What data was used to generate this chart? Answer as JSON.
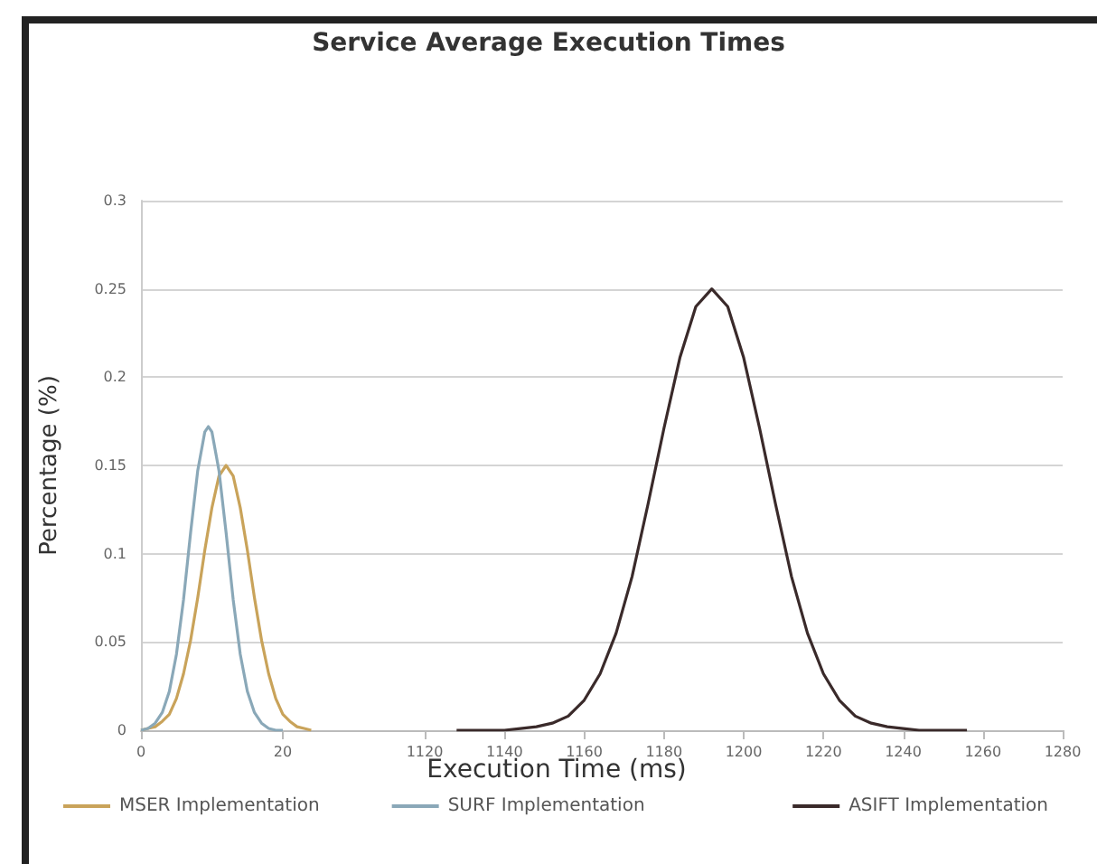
{
  "chart_data": [
    {
      "type": "line",
      "ylabel": "Percentage (%)",
      "xlim": [
        0,
        40
      ],
      "xticks": [
        0,
        20
      ],
      "ylim": [
        0,
        0.3
      ],
      "yticks": [
        0,
        0.05,
        0.1,
        0.15,
        0.2,
        0.25,
        0.3
      ],
      "grid": "y",
      "legend": "bottom",
      "marker": "none",
      "line_style": "solid",
      "series": [
        {
          "name": "MSER Implementation",
          "color": "#c9a35a",
          "x": [
            0,
            1,
            2,
            3,
            4,
            5,
            6,
            7,
            8,
            9,
            10,
            11,
            12,
            13,
            14,
            15,
            16,
            17,
            18,
            19,
            20,
            21,
            22,
            23,
            24
          ],
          "values": [
            0,
            0.001,
            0.002,
            0.005,
            0.009,
            0.018,
            0.032,
            0.051,
            0.075,
            0.102,
            0.126,
            0.144,
            0.15,
            0.144,
            0.126,
            0.102,
            0.075,
            0.051,
            0.032,
            0.018,
            0.009,
            0.005,
            0.002,
            0.001,
            0
          ]
        },
        {
          "name": "SURF Implementation",
          "color": "#8aa8b8",
          "x": [
            0,
            1,
            2,
            3,
            4,
            5,
            6,
            7,
            8,
            9,
            9.5,
            10,
            11,
            12,
            13,
            14,
            15,
            16,
            17,
            18,
            19,
            20
          ],
          "values": [
            0,
            0.001,
            0.004,
            0.01,
            0.022,
            0.043,
            0.074,
            0.112,
            0.147,
            0.169,
            0.172,
            0.169,
            0.147,
            0.112,
            0.074,
            0.043,
            0.022,
            0.01,
            0.004,
            0.001,
            0,
            0
          ]
        }
      ]
    },
    {
      "type": "line",
      "title": "Service Average Execution Times",
      "xlabel": "Execution Time (ms)",
      "xlim": [
        1120,
        1280
      ],
      "xticks": [
        1120,
        1140,
        1160,
        1180,
        1200,
        1220,
        1240,
        1260,
        1280
      ],
      "ylim": [
        0,
        0.3
      ],
      "yticks": [
        0,
        0.05,
        0.1,
        0.15,
        0.2,
        0.25,
        0.3
      ],
      "tick_labels": "x",
      "grid": "y",
      "legend": "bottom",
      "marker": "none",
      "line_style": "solid",
      "series": [
        {
          "name": "ASIFT Implementation",
          "color": "#3a2a2a",
          "x": [
            1128,
            1132,
            1136,
            1140,
            1144,
            1148,
            1152,
            1156,
            1160,
            1164,
            1168,
            1172,
            1176,
            1180,
            1184,
            1188,
            1192,
            1196,
            1200,
            1204,
            1208,
            1212,
            1216,
            1220,
            1224,
            1228,
            1232,
            1236,
            1240,
            1244,
            1248,
            1252,
            1256
          ],
          "values": [
            0,
            0,
            0,
            0,
            0.001,
            0.002,
            0.004,
            0.008,
            0.017,
            0.032,
            0.055,
            0.087,
            0.128,
            0.171,
            0.211,
            0.24,
            0.25,
            0.24,
            0.211,
            0.171,
            0.128,
            0.087,
            0.055,
            0.032,
            0.017,
            0.008,
            0.004,
            0.002,
            0.001,
            0,
            0,
            0,
            0
          ]
        }
      ]
    }
  ]
}
